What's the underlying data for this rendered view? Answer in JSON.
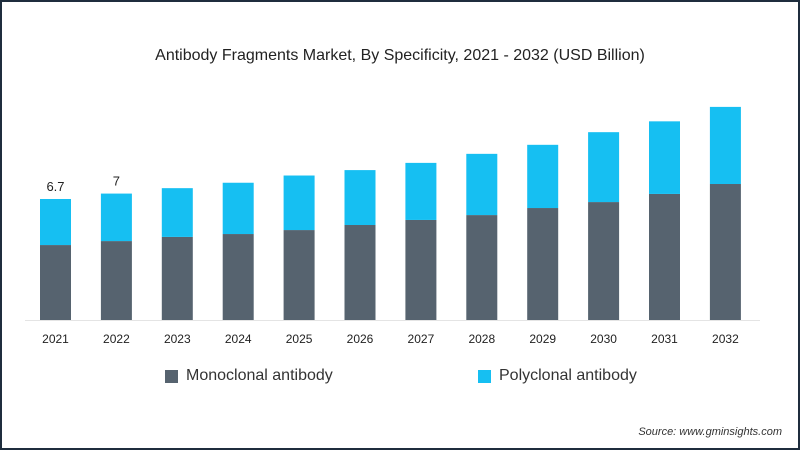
{
  "chart_data": {
    "type": "bar",
    "stacked": true,
    "title": "Antibody Fragments Market, By Specificity, 2021 - 2032 (USD Billion)",
    "xlabel": "",
    "ylabel": "",
    "categories": [
      "2021",
      "2022",
      "2023",
      "2024",
      "2025",
      "2026",
      "2027",
      "2028",
      "2029",
      "2030",
      "2031",
      "2032"
    ],
    "series": [
      {
        "name": "Monoclonal antibody",
        "color": "#56636f",
        "values": [
          4.15,
          4.37,
          4.6,
          4.76,
          4.98,
          5.26,
          5.54,
          5.81,
          6.2,
          6.53,
          6.98,
          7.53
        ]
      },
      {
        "name": "Polyclonal antibody",
        "color": "#16bff2",
        "values": [
          2.55,
          2.63,
          2.7,
          2.84,
          3.02,
          3.04,
          3.16,
          3.39,
          3.5,
          3.87,
          4.02,
          4.27
        ]
      }
    ],
    "data_labels": [
      {
        "category": "2021",
        "text": "6.7"
      },
      {
        "category": "2022",
        "text": "7"
      }
    ],
    "ylim": [
      0,
      12.5
    ],
    "grid": false,
    "legend_position": "bottom"
  },
  "source": "Source: www.gminsights.com"
}
